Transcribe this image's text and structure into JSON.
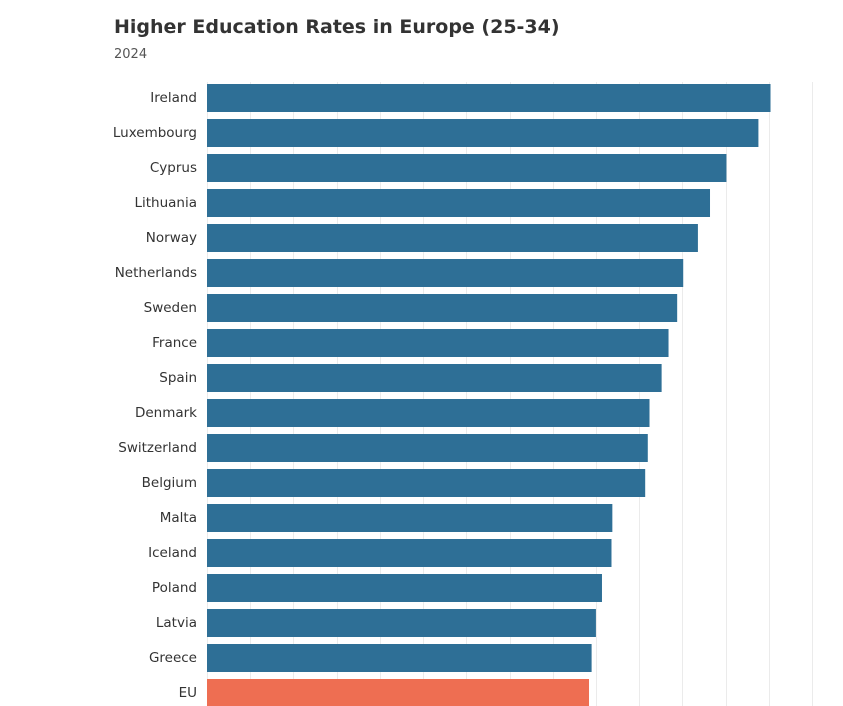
{
  "header": {
    "title": "Higher Education Rates in Europe (25-34)",
    "subtitle": "2024"
  },
  "colors": {
    "bar": "#2e6f96",
    "highlight": "#ee6e52",
    "grid": "#ebebeb",
    "label": "#333333"
  },
  "chart_data": {
    "type": "bar",
    "orientation": "horizontal",
    "title": "Higher Education Rates in Europe (25-34)",
    "subtitle": "2024",
    "xlabel": "",
    "ylabel": "",
    "xlim": [
      0,
      70
    ],
    "grid": true,
    "categories": [
      "Ireland",
      "Luxembourg",
      "Cyprus",
      "Lithuania",
      "Norway",
      "Netherlands",
      "Sweden",
      "France",
      "Spain",
      "Denmark",
      "Switzerland",
      "Belgium",
      "Malta",
      "Iceland",
      "Poland",
      "Latvia",
      "Greece",
      "EU"
    ],
    "values": [
      65.2,
      63.8,
      60.1,
      58.2,
      56.8,
      55.1,
      54.4,
      53.4,
      52.6,
      51.2,
      51.0,
      50.7,
      46.9,
      46.8,
      45.7,
      45.0,
      44.5,
      44.2
    ],
    "highlight": [
      "EU"
    ]
  }
}
